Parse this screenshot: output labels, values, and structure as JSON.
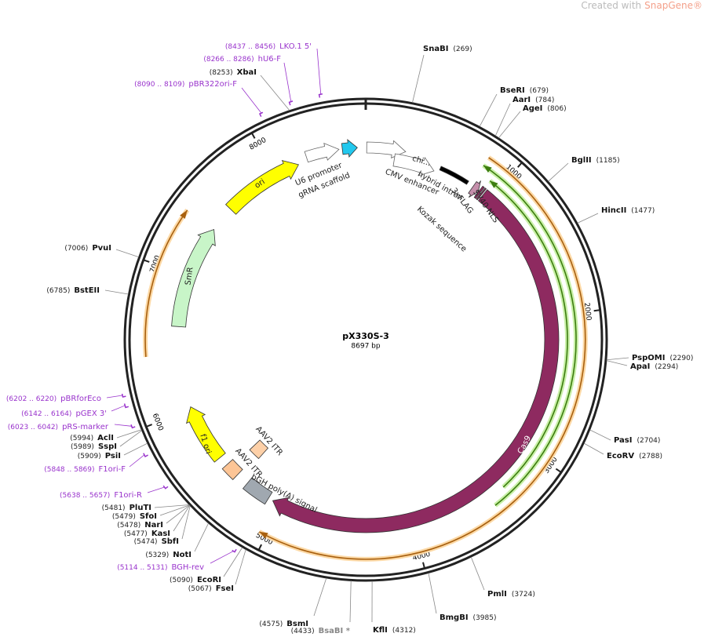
{
  "watermark": {
    "text": "Created with",
    "brand": "SnapGene®"
  },
  "plasmid": {
    "name": "pX330S-3",
    "length": {
      "value": 8697,
      "label": "8697 bp"
    }
  },
  "ruler_ticks": [
    1000,
    2000,
    3000,
    4000,
    5000,
    6000,
    7000,
    8000
  ],
  "sites": [
    {
      "name": "SnaBI",
      "position": {
        "value": 269,
        "label": "(269)"
      }
    },
    {
      "name": "BseRI",
      "position": {
        "value": 679,
        "label": "(679)"
      }
    },
    {
      "name": "AarI",
      "position": {
        "value": 784,
        "label": "(784)"
      }
    },
    {
      "name": "AgeI",
      "position": {
        "value": 806,
        "label": "(806)"
      }
    },
    {
      "name": "BglII",
      "position": {
        "value": 1185,
        "label": "(1185)"
      }
    },
    {
      "name": "HincII",
      "position": {
        "value": 1477,
        "label": "(1477)"
      }
    },
    {
      "name": "PspOMI",
      "position": {
        "value": 2290,
        "label": "(2290)"
      }
    },
    {
      "name": "ApaI",
      "position": {
        "value": 2294,
        "label": "(2294)"
      }
    },
    {
      "name": "PasI",
      "position": {
        "value": 2704,
        "label": "(2704)"
      }
    },
    {
      "name": "EcoRV",
      "position": {
        "value": 2788,
        "label": "(2788)"
      }
    },
    {
      "name": "PmlI",
      "position": {
        "value": 3724,
        "label": "(3724)"
      }
    },
    {
      "name": "BmgBI",
      "position": {
        "value": 3985,
        "label": "(3985)"
      }
    },
    {
      "name": "KflI",
      "position": {
        "value": 4312,
        "label": "(4312)"
      }
    },
    {
      "name": "BsaBI *",
      "position": {
        "value": 4433,
        "label": "(4433)"
      }
    },
    {
      "name": "BsmI",
      "position": {
        "value": 4575,
        "label": "(4575)"
      }
    },
    {
      "name": "FseI",
      "position": {
        "value": 5067,
        "label": "(5067)"
      }
    },
    {
      "name": "EcoRI",
      "position": {
        "value": 5090,
        "label": "(5090)"
      }
    },
    {
      "name": "NotI",
      "position": {
        "value": 5329,
        "label": "(5329)"
      }
    },
    {
      "name": "SbfI",
      "position": {
        "value": 5474,
        "label": "(5474)"
      }
    },
    {
      "name": "KasI",
      "position": {
        "value": 5477,
        "label": "(5477)"
      }
    },
    {
      "name": "NarI",
      "position": {
        "value": 5478,
        "label": "(5478)"
      }
    },
    {
      "name": "SfoI",
      "position": {
        "value": 5479,
        "label": "(5479)"
      }
    },
    {
      "name": "PluTI",
      "position": {
        "value": 5481,
        "label": "(5481)"
      }
    },
    {
      "name": "PsiI",
      "position": {
        "value": 5909,
        "label": "(5909)"
      }
    },
    {
      "name": "SspI",
      "position": {
        "value": 5989,
        "label": "(5989)"
      }
    },
    {
      "name": "AclI",
      "position": {
        "value": 5994,
        "label": "(5994)"
      }
    },
    {
      "name": "BstEII",
      "position": {
        "value": 6785,
        "label": "(6785)"
      }
    },
    {
      "name": "PvuI",
      "position": {
        "value": 7006,
        "label": "(7006)"
      }
    },
    {
      "name": "XbaI",
      "position": {
        "value": 8253,
        "label": "(8253)"
      }
    }
  ],
  "primers": [
    {
      "name": "LKO.1 5'",
      "range": {
        "start": 8437,
        "end": 8456,
        "label": "(8437 .. 8456)"
      }
    },
    {
      "name": "hU6-F",
      "range": {
        "start": 8266,
        "end": 8286,
        "label": "(8266 .. 8286)"
      }
    },
    {
      "name": "pBR322ori-F",
      "range": {
        "start": 8090,
        "end": 8109,
        "label": "(8090 .. 8109)"
      }
    },
    {
      "name": "pBRforEco",
      "range": {
        "start": 6202,
        "end": 6220,
        "label": "(6202 .. 6220)"
      }
    },
    {
      "name": "pGEX 3'",
      "range": {
        "start": 6142,
        "end": 6164,
        "label": "(6142 .. 6164)"
      }
    },
    {
      "name": "pRS-marker",
      "range": {
        "start": 6023,
        "end": 6042,
        "label": "(6023 .. 6042)"
      }
    },
    {
      "name": "F1ori-F",
      "range": {
        "start": 5848,
        "end": 5869,
        "label": "(5848 .. 5869)"
      }
    },
    {
      "name": "F1ori-R",
      "range": {
        "start": 5638,
        "end": 5657,
        "label": "(5638 .. 5657)"
      }
    },
    {
      "name": "BGH-rev",
      "range": {
        "start": 5114,
        "end": 5131,
        "label": "(5114 .. 5131)"
      }
    }
  ],
  "features": [
    "Cas9",
    "ori",
    "SmR",
    "f1 ori",
    "U6 promoter",
    "gRNA scaffold",
    "CMV enhancer",
    "chi...",
    "hybrid intron",
    "3xFLAG",
    "SV40 NLS",
    "Kozak sequence",
    "AAV2 ITR",
    "AAV2 ITR",
    "bGH poly(A) signal"
  ]
}
